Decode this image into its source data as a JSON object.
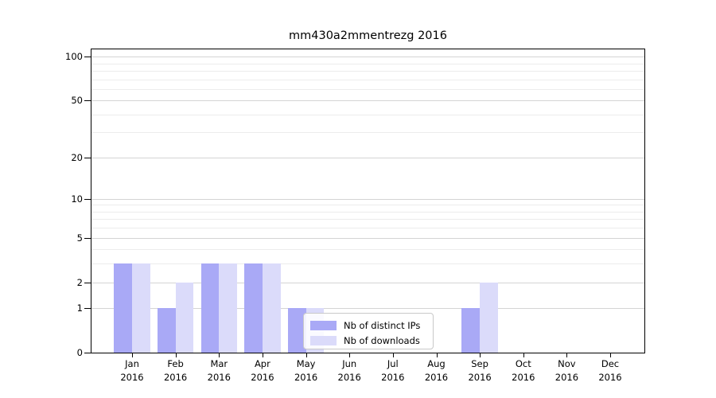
{
  "chart_data": {
    "type": "bar",
    "title": "mm430a2mmentrezg 2016",
    "categories": [
      "Jan",
      "Feb",
      "Mar",
      "Apr",
      "May",
      "Jun",
      "Jul",
      "Aug",
      "Sep",
      "Oct",
      "Nov",
      "Dec"
    ],
    "category_year": "2016",
    "series": [
      {
        "name": "Nb of distinct IPs",
        "color": "#a9a9f6",
        "values": [
          3,
          1,
          3,
          3,
          1,
          0,
          0,
          0,
          1,
          0,
          0,
          0
        ]
      },
      {
        "name": "Nb of downloads",
        "color": "#dbdbfa",
        "values": [
          3,
          2,
          3,
          3,
          1,
          0,
          0,
          0,
          2,
          0,
          0,
          0
        ]
      }
    ],
    "yscale": "log1p",
    "ylim": [
      0,
      112
    ],
    "y_major_ticks": [
      0,
      1,
      2,
      5,
      10,
      20,
      50,
      100
    ],
    "y_minor_gridlines": [
      3,
      4,
      6,
      7,
      8,
      9,
      30,
      40,
      60,
      70,
      80,
      90
    ],
    "grid": true,
    "legend_position": "lower-center",
    "colors": {
      "major_grid": "#d4d4d4",
      "minor_grid": "#ececec",
      "axis": "#000000",
      "text": "#000000",
      "legend_border": "#c9c9c9"
    }
  }
}
